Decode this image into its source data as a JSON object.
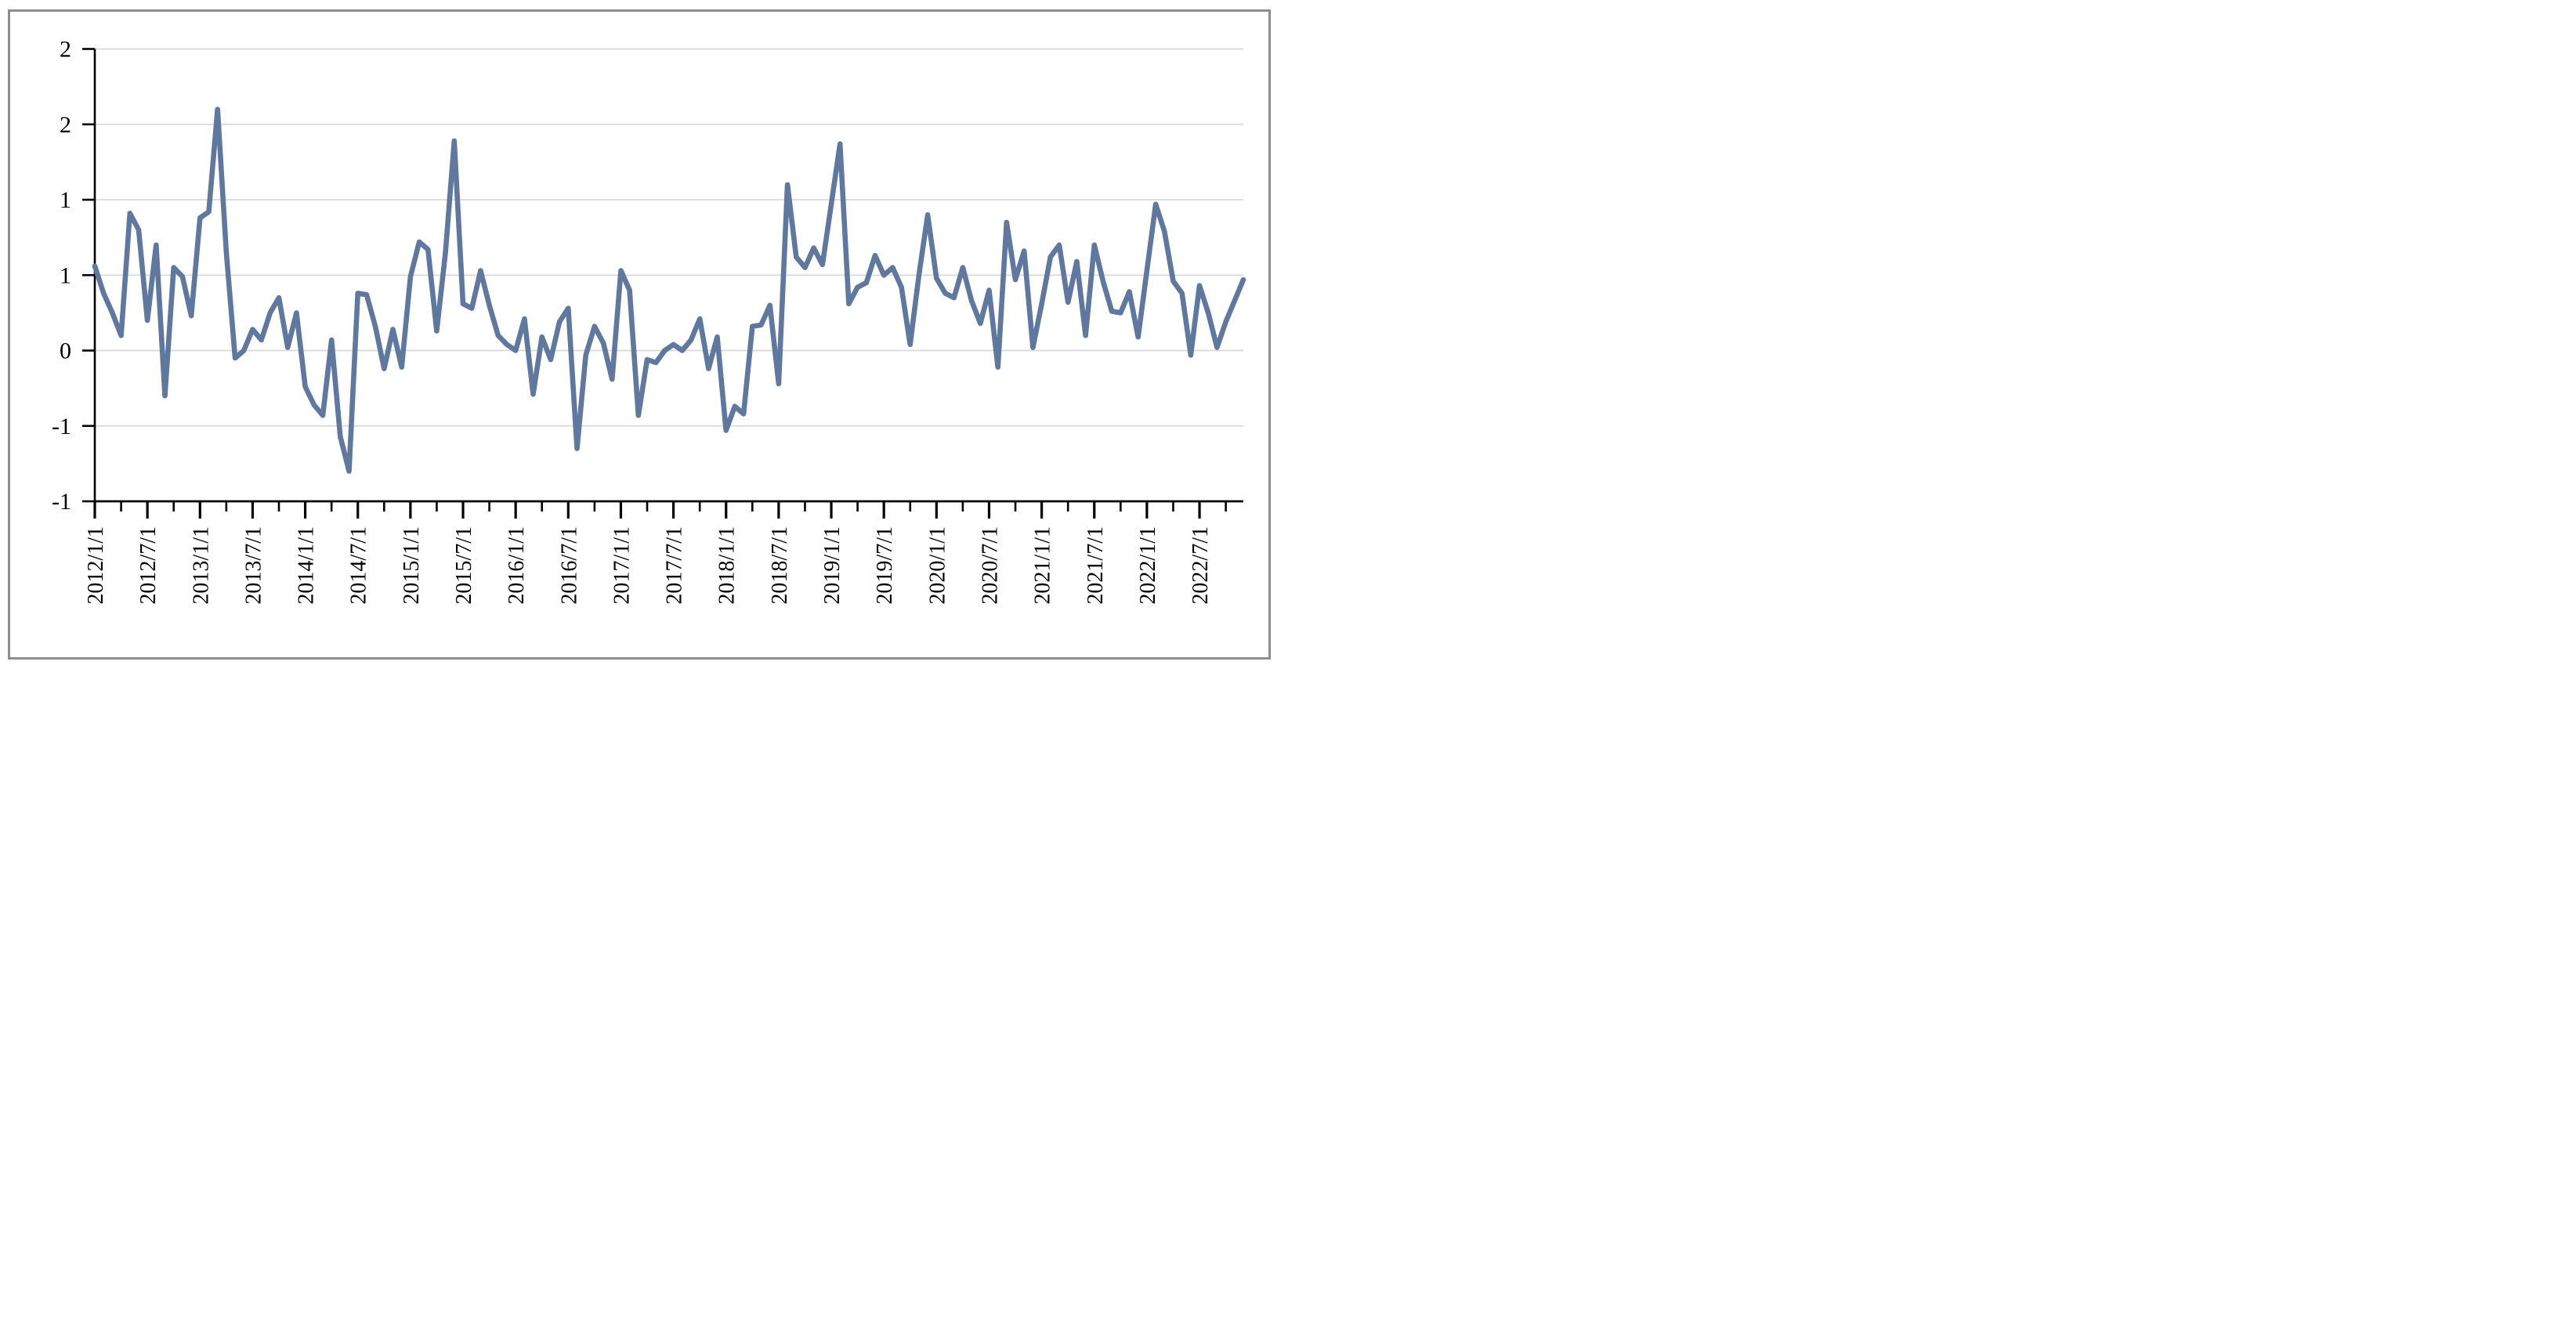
{
  "chart_data": {
    "type": "line",
    "title": "",
    "xlabel": "",
    "ylabel": "",
    "grid": "horizontal",
    "legend": "none",
    "frame_color": "#8f8f8f",
    "gridline_color": "#d9d9d9",
    "axis_color": "#000000",
    "y_axis": {
      "range": [
        -1.0,
        2.0
      ],
      "tick_step": 0.5,
      "tick_values": [
        2.0,
        1.5,
        1.0,
        0.5,
        0.0,
        -0.5,
        -1.0
      ],
      "tick_labels_displayed": [
        "2",
        "2",
        "1",
        "1",
        "0",
        "-1",
        "-1"
      ]
    },
    "x_axis": {
      "start": "2012/1/1",
      "end": "2022/12/1",
      "points": "monthly",
      "label_every_months": 6,
      "major_tick_every_months": 6,
      "minor_tick_every_months": 3,
      "tick_labels": [
        "2012/1/1",
        "2012/7/1",
        "2013/1/1",
        "2013/7/1",
        "2014/1/1",
        "2014/7/1",
        "2015/1/1",
        "2015/7/1",
        "2016/1/1",
        "2016/7/1",
        "2017/1/1",
        "2017/7/1",
        "2018/1/1",
        "2018/7/1",
        "2019/1/1",
        "2019/7/1",
        "2020/1/1",
        "2020/7/1",
        "2021/1/1",
        "2021/7/1",
        "2022/1/1",
        "2022/7/1"
      ]
    },
    "series": [
      {
        "name": "monthly-series",
        "color": "#61789e",
        "values": [
          0.56,
          0.38,
          0.25,
          0.1,
          0.91,
          0.8,
          0.2,
          0.7,
          -0.3,
          0.55,
          0.49,
          0.23,
          0.88,
          0.92,
          1.6,
          0.65,
          -0.05,
          0.0,
          0.14,
          0.07,
          0.25,
          0.35,
          0.02,
          0.25,
          -0.24,
          -0.36,
          -0.43,
          0.07,
          -0.57,
          -0.8,
          0.38,
          0.37,
          0.16,
          -0.12,
          0.14,
          -0.11,
          0.49,
          0.72,
          0.67,
          0.13,
          0.65,
          1.39,
          0.31,
          0.28,
          0.53,
          0.3,
          0.1,
          0.04,
          0.0,
          0.21,
          -0.29,
          0.09,
          -0.06,
          0.19,
          0.28,
          -0.65,
          -0.03,
          0.16,
          0.05,
          -0.19,
          0.53,
          0.4,
          -0.43,
          -0.06,
          -0.08,
          0.0,
          0.04,
          0.0,
          0.07,
          0.21,
          -0.12,
          0.09,
          -0.53,
          -0.37,
          -0.42,
          0.16,
          0.17,
          0.3,
          -0.22,
          1.1,
          0.62,
          0.55,
          0.68,
          0.57,
          0.97,
          1.37,
          0.31,
          0.42,
          0.45,
          0.63,
          0.5,
          0.55,
          0.42,
          0.04,
          0.5,
          0.9,
          0.48,
          0.38,
          0.35,
          0.55,
          0.33,
          0.18,
          0.4,
          -0.11,
          0.85,
          0.47,
          0.66,
          0.02,
          0.31,
          0.62,
          0.7,
          0.32,
          0.59,
          0.1,
          0.7,
          0.46,
          0.26,
          0.25,
          0.39,
          0.09,
          0.53,
          0.97,
          0.79,
          0.46,
          0.38,
          -0.03,
          0.43,
          0.25,
          0.02,
          0.19,
          0.33,
          0.47
        ]
      }
    ]
  }
}
